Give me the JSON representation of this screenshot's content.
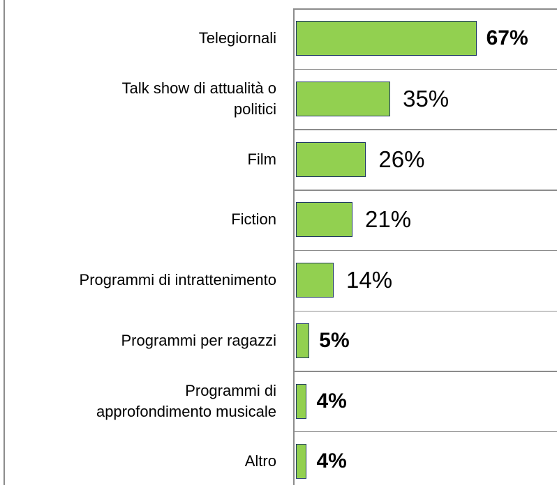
{
  "chart_data": {
    "type": "bar",
    "orientation": "horizontal",
    "categories": [
      "Telegiornali",
      "Talk show di attualità o\npolitici",
      "Film",
      "Fiction",
      "Programmi di intrattenimento",
      "Programmi per ragazzi",
      "Programmi di\napprofondimento musicale",
      "Altro"
    ],
    "values": [
      67,
      35,
      26,
      21,
      14,
      5,
      4,
      4
    ],
    "value_labels": [
      "67%",
      "35%",
      "26%",
      "21%",
      "14%",
      "5%",
      "4%",
      "4%"
    ],
    "value_label_bold": [
      true,
      false,
      false,
      false,
      false,
      true,
      true,
      true
    ],
    "color": "#92d050"
  }
}
